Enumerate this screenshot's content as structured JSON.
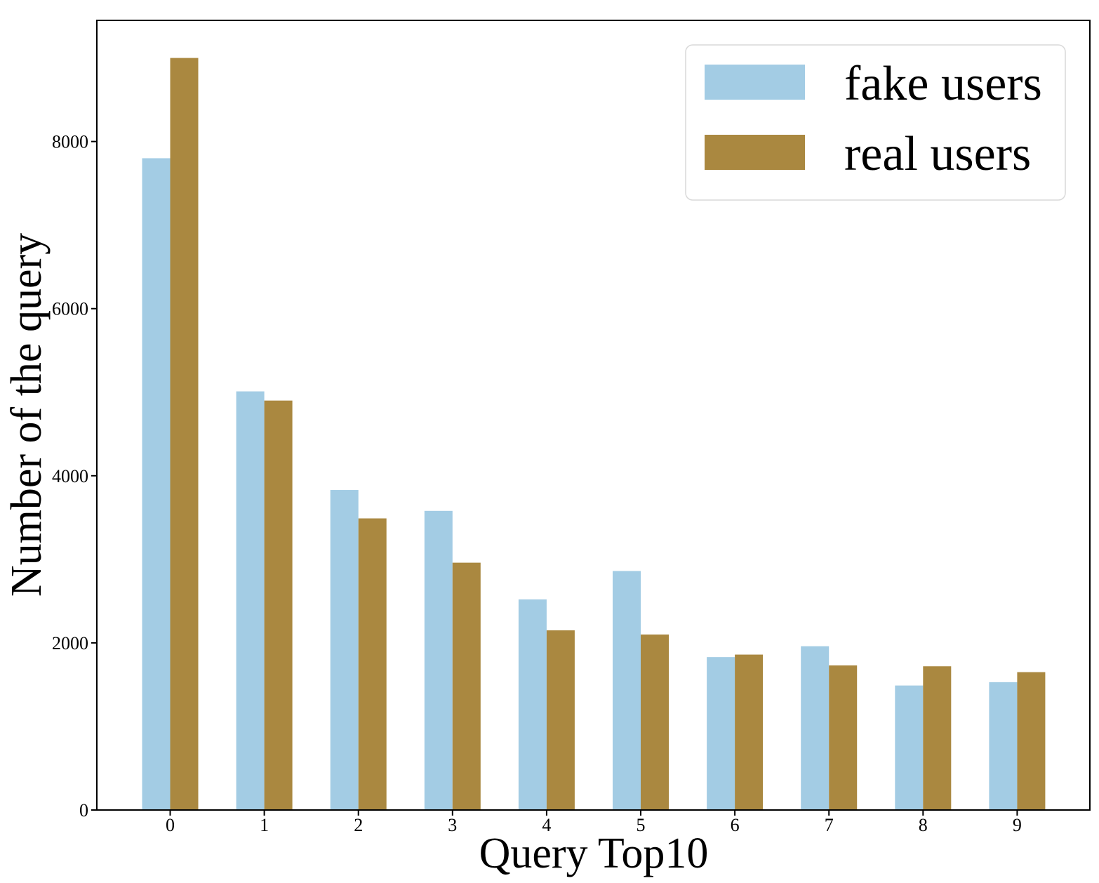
{
  "chart_data": {
    "type": "bar",
    "categories": [
      "0",
      "1",
      "2",
      "3",
      "4",
      "5",
      "6",
      "7",
      "8",
      "9"
    ],
    "series": [
      {
        "name": "fake users",
        "color": "#a3cce4",
        "values": [
          7800,
          5010,
          3830,
          3580,
          2520,
          2860,
          1830,
          1960,
          1490,
          1530
        ]
      },
      {
        "name": "real users",
        "color": "#aa8840",
        "values": [
          9000,
          4900,
          3490,
          2960,
          2150,
          2100,
          1860,
          1730,
          1720,
          1650
        ]
      }
    ],
    "xlabel": "Query Top10",
    "ylabel": "Number of the query",
    "yticks": [
      0,
      2000,
      4000,
      6000,
      8000
    ],
    "ylim": [
      0,
      9450
    ],
    "grid": false,
    "legend_position": "top-right"
  }
}
